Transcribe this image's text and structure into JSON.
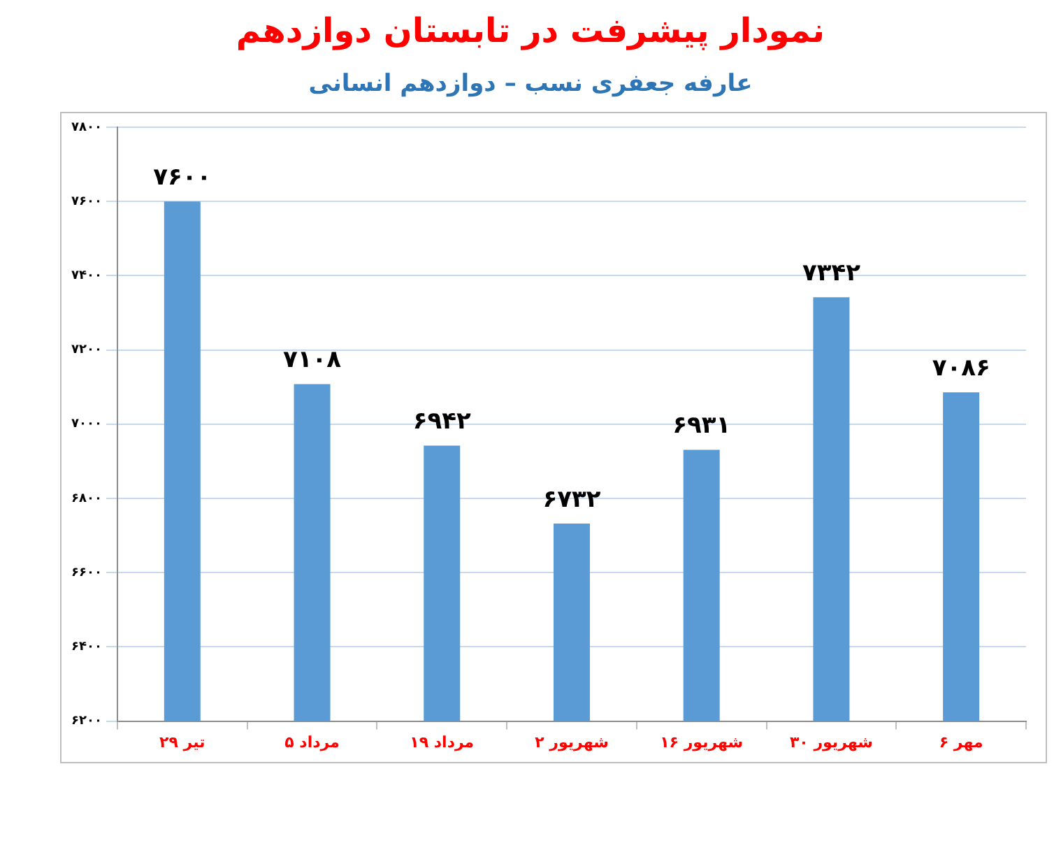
{
  "chart_data": {
    "type": "bar",
    "title": "نمودار پیشرفت در تابستان دوازدهم",
    "subtitle": "عارفه جعفری نسب – دوازدهم انسانی",
    "categories": [
      "۲۹ تیر",
      "۵ مرداد",
      "۱۹ مرداد",
      "۲ شهریور",
      "۱۶ شهریور",
      "۳۰ شهریور",
      "۶ مهر"
    ],
    "values": [
      7600,
      7108,
      6942,
      6732,
      6931,
      7342,
      7086
    ],
    "value_labels": [
      "۷۶۰۰",
      "۷۱۰۸",
      "۶۹۴۲",
      "۶۷۳۲",
      "۶۹۳۱",
      "۷۳۴۲",
      "۷۰۸۶"
    ],
    "color": "#5b9bd5",
    "ylim": [
      6200,
      7800
    ],
    "yticks": [
      {
        "value": 6200,
        "label": "۶۲۰۰"
      },
      {
        "value": 6400,
        "label": "۶۴۰۰"
      },
      {
        "value": 6600,
        "label": "۶۶۰۰"
      },
      {
        "value": 6800,
        "label": "۶۸۰۰"
      },
      {
        "value": 7000,
        "label": "۷۰۰۰"
      },
      {
        "value": 7200,
        "label": "۷۲۰۰"
      },
      {
        "value": 7400,
        "label": "۷۴۰۰"
      },
      {
        "value": 7600,
        "label": "۷۶۰۰"
      },
      {
        "value": 7800,
        "label": "۷۸۰۰"
      }
    ],
    "grid": "y",
    "legend": false
  }
}
